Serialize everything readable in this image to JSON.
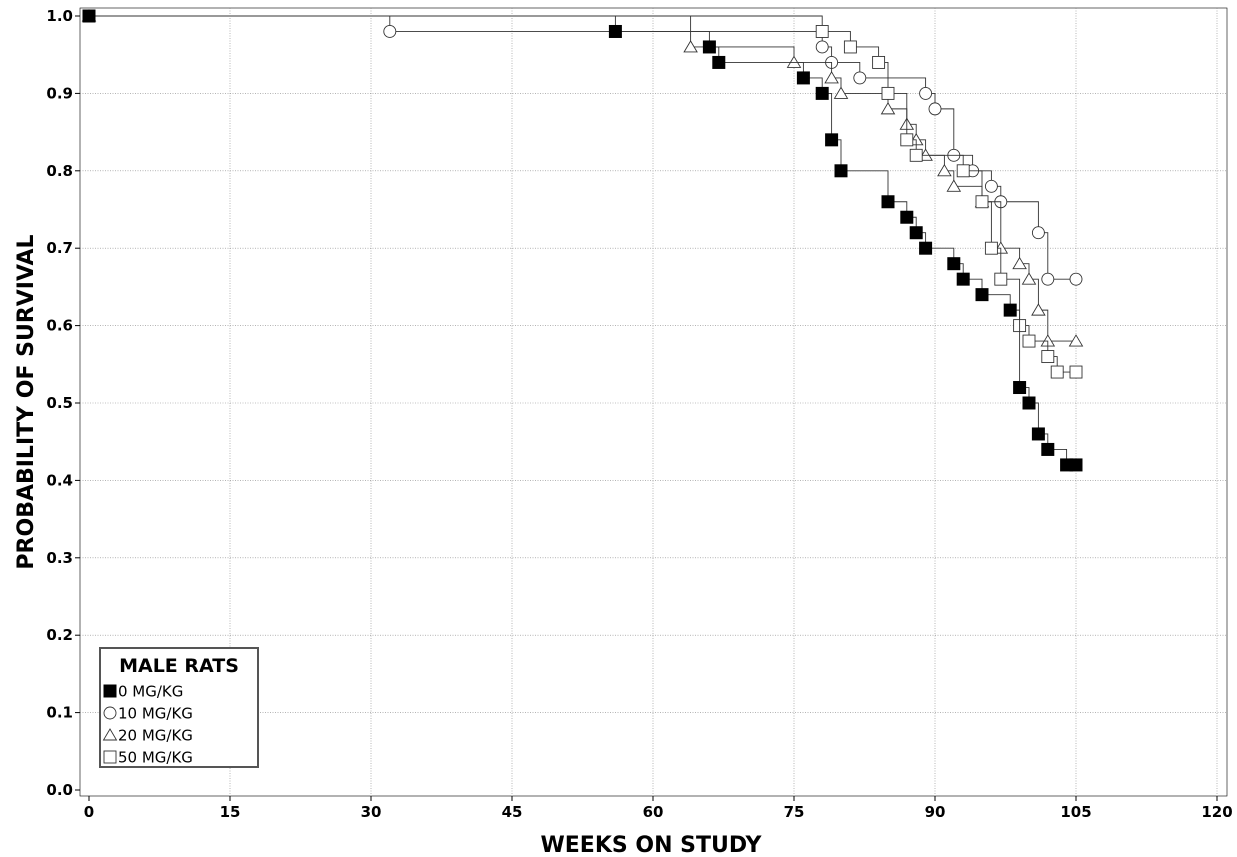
{
  "chart_data": {
    "type": "line",
    "step": true,
    "xlabel": "WEEKS ON STUDY",
    "ylabel": "PROBABILITY OF SURVIVAL",
    "xlim": [
      0,
      121
    ],
    "ylim": [
      0,
      1.01
    ],
    "xticks": [
      0,
      15,
      30,
      45,
      60,
      75,
      90,
      105,
      120
    ],
    "yticks": [
      0.0,
      0.1,
      0.2,
      0.3,
      0.4,
      0.5,
      0.6,
      0.7,
      0.8,
      0.9,
      1.0
    ],
    "xtick_labels": [
      "0",
      "15",
      "30",
      "45",
      "60",
      "75",
      "90",
      "105",
      "120"
    ],
    "ytick_labels": [
      "0.0",
      "0.1",
      "0.2",
      "0.3",
      "0.4",
      "0.5",
      "0.6",
      "0.7",
      "0.8",
      "0.9",
      "1.0"
    ],
    "grid": true,
    "legend": {
      "title": "MALE RATS",
      "position": "bottom-left",
      "entries": [
        "0 MG/KG",
        "10 MG/KG",
        "20 MG/KG",
        "50 MG/KG"
      ]
    },
    "series": [
      {
        "name": "0 MG/KG",
        "marker": "filled-square",
        "points": [
          [
            0,
            1.0
          ],
          [
            56,
            0.98
          ],
          [
            66,
            0.96
          ],
          [
            67,
            0.94
          ],
          [
            76,
            0.92
          ],
          [
            78,
            0.9
          ],
          [
            79,
            0.84
          ],
          [
            80,
            0.8
          ],
          [
            85,
            0.76
          ],
          [
            87,
            0.74
          ],
          [
            88,
            0.72
          ],
          [
            89,
            0.7
          ],
          [
            92,
            0.68
          ],
          [
            93,
            0.66
          ],
          [
            95,
            0.64
          ],
          [
            98,
            0.62
          ],
          [
            99,
            0.52
          ],
          [
            100,
            0.5
          ],
          [
            101,
            0.46
          ],
          [
            102,
            0.44
          ],
          [
            104,
            0.42
          ],
          [
            105,
            0.42
          ]
        ]
      },
      {
        "name": "10 MG/KG",
        "marker": "circle",
        "points": [
          [
            0,
            1.0
          ],
          [
            32,
            0.98
          ],
          [
            78,
            0.96
          ],
          [
            79,
            0.94
          ],
          [
            82,
            0.92
          ],
          [
            89,
            0.9
          ],
          [
            90,
            0.88
          ],
          [
            92,
            0.82
          ],
          [
            94,
            0.8
          ],
          [
            96,
            0.78
          ],
          [
            97,
            0.76
          ],
          [
            101,
            0.72
          ],
          [
            102,
            0.66
          ],
          [
            105,
            0.66
          ]
        ]
      },
      {
        "name": "20 MG/KG",
        "marker": "triangle",
        "points": [
          [
            0,
            1.0
          ],
          [
            64,
            0.96
          ],
          [
            75,
            0.94
          ],
          [
            79,
            0.92
          ],
          [
            80,
            0.9
          ],
          [
            85,
            0.88
          ],
          [
            87,
            0.86
          ],
          [
            88,
            0.84
          ],
          [
            89,
            0.82
          ],
          [
            91,
            0.8
          ],
          [
            92,
            0.78
          ],
          [
            95,
            0.76
          ],
          [
            97,
            0.7
          ],
          [
            99,
            0.68
          ],
          [
            100,
            0.66
          ],
          [
            101,
            0.62
          ],
          [
            102,
            0.58
          ],
          [
            105,
            0.58
          ]
        ]
      },
      {
        "name": "50 MG/KG",
        "marker": "square",
        "points": [
          [
            0,
            1.0
          ],
          [
            78,
            0.98
          ],
          [
            81,
            0.96
          ],
          [
            84,
            0.94
          ],
          [
            85,
            0.9
          ],
          [
            87,
            0.84
          ],
          [
            88,
            0.82
          ],
          [
            93,
            0.8
          ],
          [
            95,
            0.76
          ],
          [
            96,
            0.7
          ],
          [
            97,
            0.66
          ],
          [
            99,
            0.6
          ],
          [
            100,
            0.58
          ],
          [
            102,
            0.56
          ],
          [
            103,
            0.54
          ],
          [
            105,
            0.54
          ]
        ]
      }
    ]
  }
}
